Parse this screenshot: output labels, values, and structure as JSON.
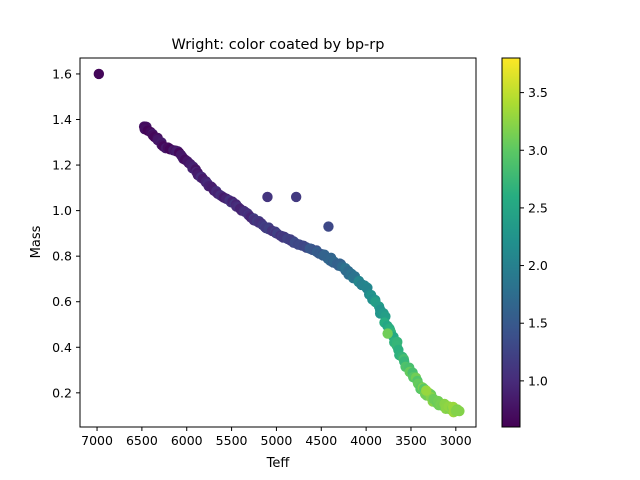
{
  "chart_data": {
    "type": "scatter",
    "title": "Wright: color coated by bp-rp",
    "xlabel": "Teff",
    "ylabel": "Mass",
    "x_inverted": true,
    "xlim": [
      7190,
      2775
    ],
    "ylim": [
      0.05,
      1.67
    ],
    "xticks": [
      7000,
      6500,
      6000,
      5500,
      5000,
      4500,
      4000,
      3500,
      3000
    ],
    "yticks": [
      0.2,
      0.4,
      0.6,
      0.8,
      1.0,
      1.2,
      1.4,
      1.6
    ],
    "xtick_labels": [
      "7000",
      "6500",
      "6000",
      "5500",
      "5000",
      "4500",
      "4000",
      "3500",
      "3000"
    ],
    "ytick_labels": [
      "0.2",
      "0.4",
      "0.6",
      "0.8",
      "1.0",
      "1.2",
      "1.4",
      "1.6"
    ],
    "colorbar": {
      "colormap": "viridis",
      "range": [
        0.6,
        3.8
      ],
      "ticks": [
        1.0,
        1.5,
        2.0,
        2.5,
        3.0,
        3.5
      ],
      "tick_labels": [
        "1.0",
        "1.5",
        "2.0",
        "2.5",
        "3.0",
        "3.5"
      ]
    },
    "outliers": [
      {
        "teff": 6980,
        "mass": 1.6,
        "bp_rp": 0.65
      },
      {
        "teff": 5100,
        "mass": 1.06,
        "bp_rp": 1.1
      },
      {
        "teff": 4780,
        "mass": 1.06,
        "bp_rp": 1.15
      },
      {
        "teff": 4420,
        "mass": 0.93,
        "bp_rp": 1.3
      }
    ],
    "highlighted": [
      {
        "teff": 3760,
        "mass": 0.46,
        "bp_rp": 3.1
      },
      {
        "teff": 3330,
        "mass": 0.21,
        "bp_rp": 3.3
      },
      {
        "teff": 3000,
        "mass": 0.12,
        "bp_rp": 3.2
      }
    ],
    "sequence": [
      {
        "teff": 6460,
        "mass": 1.37,
        "bp_rp": 0.72
      },
      {
        "teff": 6460,
        "mass": 1.36,
        "bp_rp": 0.72
      },
      {
        "teff": 6330,
        "mass": 1.32,
        "bp_rp": 0.74
      },
      {
        "teff": 6250,
        "mass": 1.28,
        "bp_rp": 0.76
      },
      {
        "teff": 6100,
        "mass": 1.26,
        "bp_rp": 0.78
      },
      {
        "teff": 5950,
        "mass": 1.2,
        "bp_rp": 0.85
      },
      {
        "teff": 5900,
        "mass": 1.17,
        "bp_rp": 0.86
      },
      {
        "teff": 5800,
        "mass": 1.13,
        "bp_rp": 0.88
      },
      {
        "teff": 5700,
        "mass": 1.09,
        "bp_rp": 0.9
      },
      {
        "teff": 5550,
        "mass": 1.05,
        "bp_rp": 0.95
      },
      {
        "teff": 5400,
        "mass": 1.01,
        "bp_rp": 1.0
      },
      {
        "teff": 5200,
        "mass": 0.95,
        "bp_rp": 1.08
      },
      {
        "teff": 5000,
        "mass": 0.9,
        "bp_rp": 1.15
      },
      {
        "teff": 4800,
        "mass": 0.86,
        "bp_rp": 1.25
      },
      {
        "teff": 4600,
        "mass": 0.83,
        "bp_rp": 1.4
      },
      {
        "teff": 4450,
        "mass": 0.8,
        "bp_rp": 1.55
      },
      {
        "teff": 4300,
        "mass": 0.76,
        "bp_rp": 1.7
      },
      {
        "teff": 4150,
        "mass": 0.72,
        "bp_rp": 1.85
      },
      {
        "teff": 4000,
        "mass": 0.66,
        "bp_rp": 2.05
      },
      {
        "teff": 3900,
        "mass": 0.6,
        "bp_rp": 2.25
      },
      {
        "teff": 3800,
        "mass": 0.53,
        "bp_rp": 2.45
      },
      {
        "teff": 3700,
        "mass": 0.44,
        "bp_rp": 2.65
      },
      {
        "teff": 3600,
        "mass": 0.36,
        "bp_rp": 2.8
      },
      {
        "teff": 3500,
        "mass": 0.29,
        "bp_rp": 2.95
      },
      {
        "teff": 3400,
        "mass": 0.23,
        "bp_rp": 3.05
      },
      {
        "teff": 3300,
        "mass": 0.19,
        "bp_rp": 3.1
      },
      {
        "teff": 3200,
        "mass": 0.155,
        "bp_rp": 3.15
      },
      {
        "teff": 3100,
        "mass": 0.135,
        "bp_rp": 3.18
      },
      {
        "teff": 2960,
        "mass": 0.12,
        "bp_rp": 3.2
      }
    ]
  }
}
